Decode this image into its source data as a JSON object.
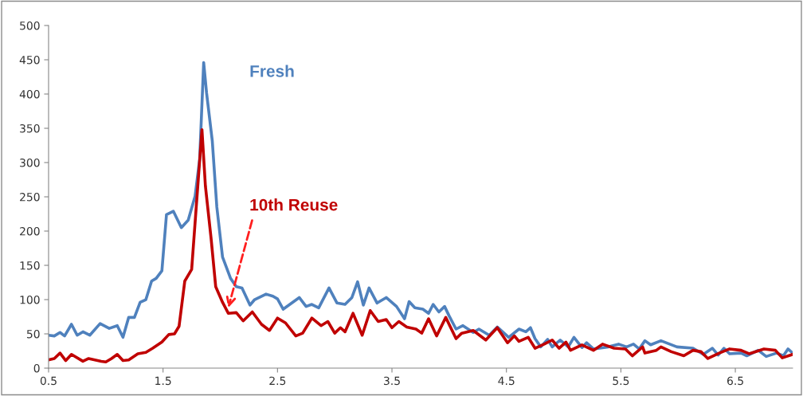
{
  "chart_data": {
    "type": "line",
    "xlim": [
      0.5,
      7.0
    ],
    "xticks": [
      0.5,
      1.5,
      2.5,
      3.5,
      4.5,
      5.5,
      6.5
    ],
    "ylim": [
      0,
      500
    ],
    "yticks": [
      0,
      50,
      100,
      150,
      200,
      250,
      300,
      350,
      400,
      450,
      500
    ],
    "grid": false,
    "legend": false,
    "marker": "none",
    "line_style": "solid",
    "series": [
      {
        "name": "Fresh",
        "color": "#4f81bd",
        "x": [
          0.5,
          0.55,
          0.6,
          0.64,
          0.7,
          0.75,
          0.8,
          0.86,
          0.95,
          1.03,
          1.1,
          1.15,
          1.2,
          1.25,
          1.3,
          1.35,
          1.4,
          1.44,
          1.49,
          1.53,
          1.59,
          1.66,
          1.72,
          1.78,
          1.82,
          1.855,
          1.88,
          1.93,
          1.97,
          2.02,
          2.09,
          2.14,
          2.19,
          2.26,
          2.3,
          2.4,
          2.46,
          2.5,
          2.55,
          2.69,
          2.75,
          2.8,
          2.86,
          2.95,
          3.02,
          3.09,
          3.15,
          3.2,
          3.25,
          3.3,
          3.37,
          3.45,
          3.54,
          3.61,
          3.65,
          3.7,
          3.77,
          3.82,
          3.86,
          3.91,
          3.96,
          4.0,
          4.06,
          4.12,
          4.21,
          4.26,
          4.35,
          4.42,
          4.52,
          4.61,
          4.67,
          4.71,
          4.75,
          4.8,
          4.86,
          4.9,
          4.97,
          5.04,
          5.09,
          5.16,
          5.2,
          5.26,
          5.39,
          5.48,
          5.55,
          5.61,
          5.66,
          5.71,
          5.76,
          5.85,
          5.99,
          6.13,
          6.22,
          6.3,
          6.35,
          6.4,
          6.45,
          6.55,
          6.6,
          6.7,
          6.77,
          6.86,
          6.92,
          6.96,
          7.0
        ],
        "values": [
          48,
          47,
          52,
          47,
          64,
          48,
          53,
          48,
          65,
          58,
          62,
          45,
          74,
          74,
          96,
          100,
          127,
          131,
          142,
          224,
          229,
          205,
          216,
          251,
          305,
          446,
          402,
          332,
          235,
          162,
          131,
          119,
          117,
          92,
          100,
          108,
          105,
          101,
          86,
          103,
          90,
          93,
          88,
          117,
          95,
          93,
          103,
          126,
          92,
          117,
          95,
          103,
          90,
          72,
          97,
          88,
          86,
          80,
          93,
          82,
          90,
          76,
          57,
          62,
          52,
          57,
          48,
          60,
          45,
          57,
          53,
          59,
          43,
          31,
          42,
          31,
          41,
          31,
          45,
          30,
          37,
          28,
          31,
          35,
          31,
          35,
          28,
          40,
          34,
          40,
          31,
          29,
          20,
          29,
          19,
          29,
          21,
          22,
          18,
          26,
          17,
          22,
          18,
          28,
          22
        ]
      },
      {
        "name": "10th Reuse",
        "color": "#c00000",
        "x": [
          0.5,
          0.55,
          0.6,
          0.65,
          0.7,
          0.8,
          0.85,
          0.96,
          1.0,
          1.05,
          1.1,
          1.15,
          1.2,
          1.28,
          1.35,
          1.41,
          1.49,
          1.55,
          1.6,
          1.64,
          1.69,
          1.75,
          1.79,
          1.84,
          1.87,
          1.92,
          1.96,
          2.02,
          2.07,
          2.14,
          2.2,
          2.28,
          2.36,
          2.43,
          2.5,
          2.57,
          2.66,
          2.72,
          2.8,
          2.88,
          2.94,
          3.0,
          3.05,
          3.09,
          3.16,
          3.24,
          3.31,
          3.38,
          3.45,
          3.5,
          3.56,
          3.63,
          3.71,
          3.76,
          3.82,
          3.89,
          3.97,
          4.06,
          4.11,
          4.21,
          4.32,
          4.42,
          4.51,
          4.57,
          4.61,
          4.69,
          4.75,
          4.83,
          4.9,
          4.96,
          5.02,
          5.06,
          5.16,
          5.26,
          5.34,
          5.44,
          5.54,
          5.6,
          5.69,
          5.71,
          5.81,
          5.85,
          5.94,
          6.05,
          6.13,
          6.2,
          6.26,
          6.36,
          6.45,
          6.55,
          6.62,
          6.75,
          6.85,
          6.91,
          7.0
        ],
        "values": [
          12,
          14,
          22,
          11,
          20,
          10,
          14,
          10,
          9,
          14,
          20,
          11,
          12,
          21,
          23,
          29,
          38,
          49,
          50,
          61,
          127,
          144,
          235,
          348,
          266,
          189,
          119,
          96,
          80,
          81,
          69,
          82,
          64,
          55,
          73,
          66,
          47,
          51,
          73,
          62,
          68,
          51,
          59,
          53,
          80,
          48,
          84,
          68,
          71,
          59,
          68,
          60,
          57,
          51,
          72,
          47,
          74,
          43,
          51,
          55,
          41,
          59,
          37,
          47,
          39,
          45,
          29,
          35,
          41,
          29,
          38,
          26,
          34,
          26,
          35,
          29,
          28,
          18,
          31,
          22,
          26,
          31,
          24,
          18,
          26,
          24,
          14,
          22,
          28,
          26,
          21,
          28,
          26,
          15,
          20
        ]
      }
    ]
  }
}
